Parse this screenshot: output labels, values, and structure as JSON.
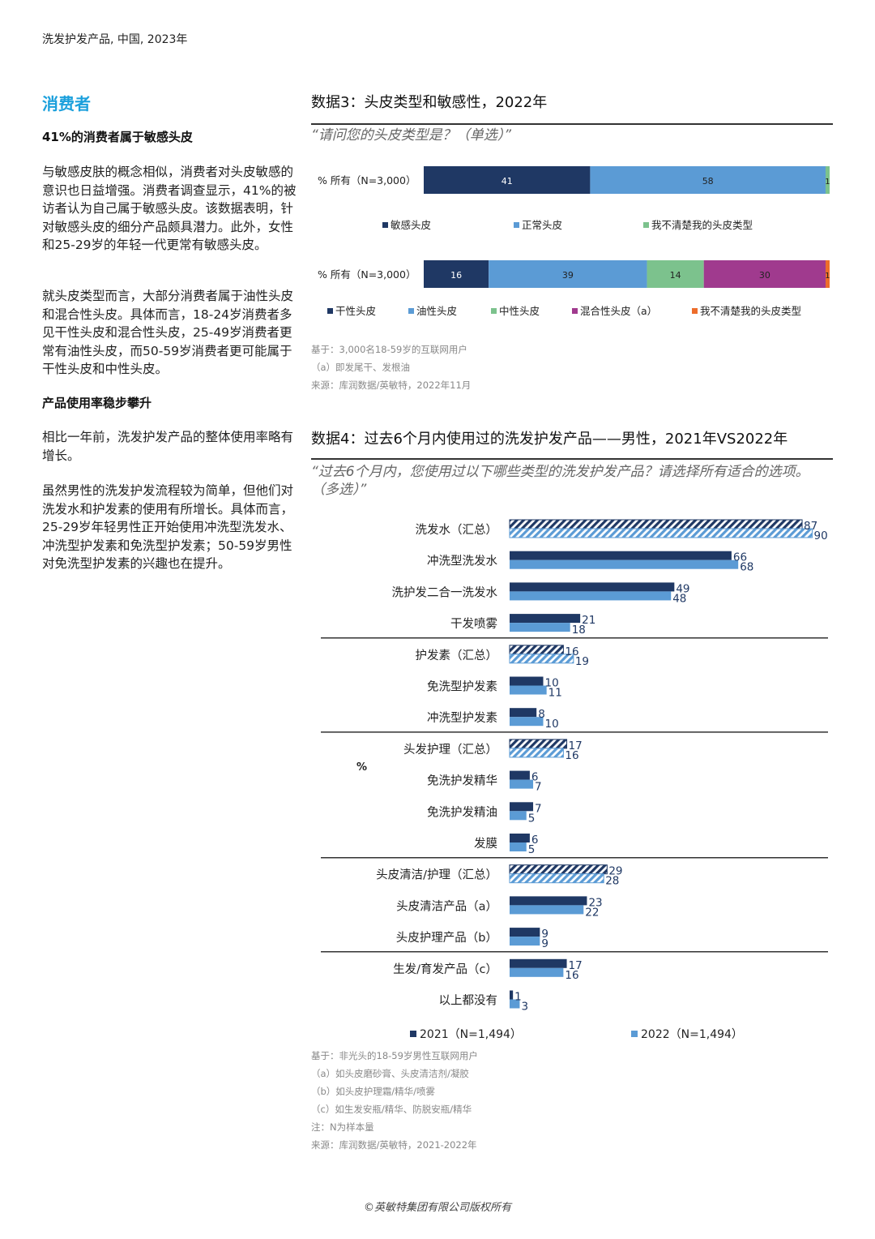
{
  "header": "洗发护发产品, 中国, 2023年",
  "left": {
    "section_title": "消费者",
    "heading1": "41%的消费者属于敏感头皮",
    "para1": "与敏感皮肤的概念相似，消费者对头皮敏感的意识也日益增强。消费者调查显示，41%的被访者认为自己属于敏感头皮。该数据表明，针对敏感头皮的细分产品颇具潜力。此外，女性和25-29岁的年轻一代更常有敏感头皮。",
    "para2": "就头皮类型而言，大部分消费者属于油性头皮和混合性头皮。具体而言，18-24岁消费者多见干性头皮和混合性头皮，25-49岁消费者更常有油性头皮，而50-59岁消费者更可能属于干性头皮和中性头皮。",
    "heading2": "产品使用率稳步攀升",
    "para3": "相比一年前，洗发护发产品的整体使用率略有增长。",
    "para4": "虽然男性的洗发护发流程较为简单，但他们对洗发水和护发素的使用有所增长。具体而言，25-29岁年轻男性正开始使用冲洗型洗发水、冲洗型护发素和免洗型护发素；50-59岁男性对免洗型护发素的兴趣也在提升。"
  },
  "fig3": {
    "title": "数据3：头皮类型和敏感性，2022年",
    "question": "“请问您的头皮类型是？（单选）”",
    "notes": [
      "基于：3,000名18-59岁的互联网用户",
      "（a）即发尾干、发根油",
      "来源：库润数据/英敏特，2022年11月"
    ]
  },
  "fig4": {
    "title": "数据4：过去6个月内使用过的洗发护发产品——男性，2021年VS2022年",
    "question": "“过去6个月内，您使用过以下哪些类型的洗发护发产品？请选择所有适合的选项。（多选）”",
    "notes": [
      "基于：非光头的18-59岁男性互联网用户",
      "（a）如头皮磨砂膏、头皮清洁剂/凝胶",
      "（b）如头皮护理霜/精华/喷雾",
      "（c）如生发安瓶/精华、防脱安瓶/精华",
      "注：N为样本量",
      "来源：库润数据/英敏特，2021-2022年"
    ]
  },
  "footer": "©英敏特集团有限公司版权所有",
  "colors": {
    "accent": "#1ba0dc",
    "navy": "#1f3864",
    "blue": "#5b9bd5",
    "green": "#7cc28d",
    "purple": "#a03a8e",
    "orange": "#ed6d2b",
    "label_navy": "#1f3864"
  },
  "chart_data": [
    {
      "type": "bar",
      "orientation": "horizontal-stacked",
      "title": "请问您的头皮类型是？（单选）- 敏感性",
      "row_label": "% 所有（N=3,000）",
      "series": [
        {
          "name": "敏感头皮",
          "values": [
            41
          ],
          "color": "#1f3864"
        },
        {
          "name": "正常头皮",
          "values": [
            58
          ],
          "color": "#5b9bd5"
        },
        {
          "name": "我不清楚我的头皮类型",
          "values": [
            1
          ],
          "color": "#7cc28d"
        }
      ],
      "xlim": [
        0,
        100
      ]
    },
    {
      "type": "bar",
      "orientation": "horizontal-stacked",
      "title": "请问您的头皮类型是？（单选）- 头皮类型",
      "row_label": "% 所有（N=3,000）",
      "series": [
        {
          "name": "干性头皮",
          "values": [
            16
          ],
          "color": "#1f3864"
        },
        {
          "name": "油性头皮",
          "values": [
            39
          ],
          "color": "#5b9bd5"
        },
        {
          "name": "中性头皮",
          "values": [
            14
          ],
          "color": "#7cc28d"
        },
        {
          "name": "混合性头皮（a）",
          "values": [
            30
          ],
          "color": "#a03a8e"
        },
        {
          "name": "我不清楚我的头皮类型",
          "values": [
            1
          ],
          "color": "#ed6d2b"
        }
      ],
      "xlim": [
        0,
        100
      ]
    },
    {
      "type": "bar",
      "orientation": "horizontal-grouped",
      "title": "过去6个月内使用过的洗发护发产品——男性，2021年VS2022年",
      "ylabel": "%",
      "categories": [
        "洗发水（汇总）",
        "冲洗型洗发水",
        "洗护发二合一洗发水",
        "干发喷雾",
        "护发素（汇总）",
        "免洗型护发素",
        "冲洗型护发素",
        "头发护理（汇总）",
        "免洗护发精华",
        "免洗护发精油",
        "发膜",
        "头皮清洁/护理（汇总）",
        "头皮清洁产品（a）",
        "头皮护理产品（b）",
        "生发/育发产品（c）",
        "以上都没有"
      ],
      "summary_rows": [
        0,
        4,
        7,
        11
      ],
      "separators_after": [
        3,
        6,
        10,
        13
      ],
      "series": [
        {
          "name": "2021（N=1,494）",
          "values": [
            87,
            66,
            49,
            21,
            16,
            10,
            8,
            17,
            6,
            7,
            6,
            29,
            23,
            9,
            17,
            1
          ],
          "color": "#1f3864"
        },
        {
          "name": "2022（N=1,494）",
          "values": [
            90,
            68,
            48,
            18,
            19,
            11,
            10,
            16,
            7,
            5,
            5,
            28,
            22,
            9,
            16,
            3
          ],
          "color": "#5b9bd5"
        }
      ],
      "xlim": [
        0,
        100
      ]
    }
  ]
}
